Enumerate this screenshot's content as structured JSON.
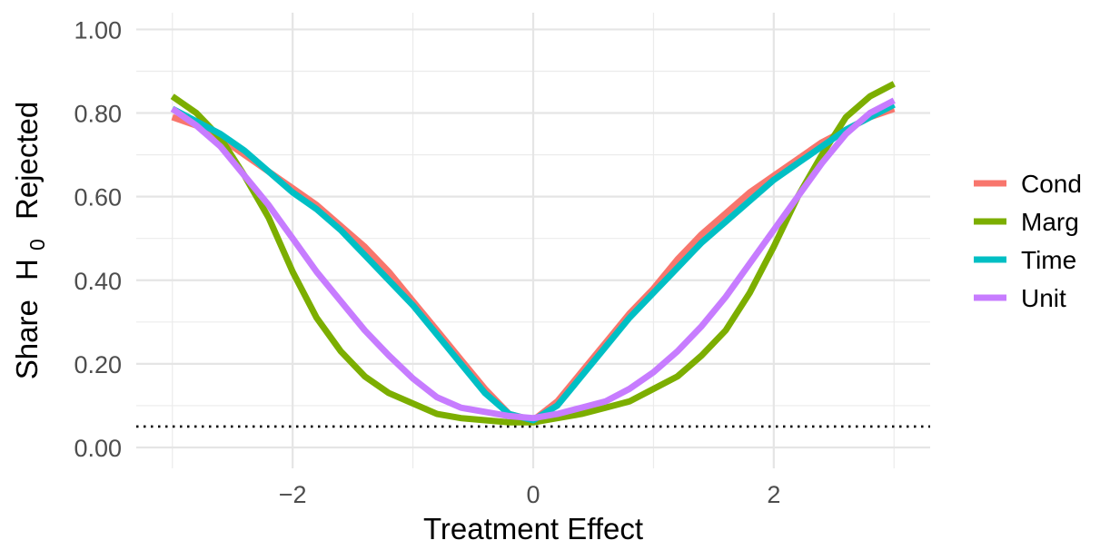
{
  "chart_data": {
    "type": "line",
    "xlabel": "Treatment Effect",
    "ylabel": {
      "prefix": "Share",
      "symbol": "H",
      "subscript": "0",
      "suffix": "Rejected"
    },
    "xlim": [
      -3.3,
      3.3
    ],
    "ylim": [
      -0.05,
      1.04
    ],
    "xticks": [
      -2,
      0,
      2
    ],
    "xtick_labels": [
      "−2",
      "0",
      "2"
    ],
    "yticks": [
      0,
      0.2,
      0.4,
      0.6,
      0.8,
      1.0
    ],
    "ytick_labels": [
      "0.00",
      "0.20",
      "0.40",
      "0.60",
      "0.80",
      "1.00"
    ],
    "x_minor_gridlines": [
      -3,
      -1,
      1,
      3
    ],
    "y_minor_gridlines": [
      0.1,
      0.3,
      0.5,
      0.7,
      0.9
    ],
    "grid": true,
    "reference_line": {
      "y": 0.05,
      "style": "dotted"
    },
    "legend_position": "right",
    "x": [
      -3.0,
      -2.8,
      -2.6,
      -2.4,
      -2.2,
      -2.0,
      -1.8,
      -1.6,
      -1.4,
      -1.2,
      -1.0,
      -0.8,
      -0.6,
      -0.4,
      -0.2,
      0.0,
      0.2,
      0.4,
      0.6,
      0.8,
      1.0,
      1.2,
      1.4,
      1.6,
      1.8,
      2.0,
      2.2,
      2.4,
      2.6,
      2.8,
      3.0
    ],
    "series": [
      {
        "name": "Cond",
        "color": "#F8766D",
        "values": [
          0.79,
          0.77,
          0.74,
          0.7,
          0.66,
          0.62,
          0.58,
          0.53,
          0.48,
          0.42,
          0.35,
          0.28,
          0.21,
          0.14,
          0.08,
          0.065,
          0.11,
          0.18,
          0.25,
          0.32,
          0.38,
          0.45,
          0.51,
          0.56,
          0.61,
          0.65,
          0.69,
          0.73,
          0.76,
          0.79,
          0.81
        ]
      },
      {
        "name": "Marg",
        "color": "#7CAE00",
        "values": [
          0.84,
          0.8,
          0.74,
          0.65,
          0.55,
          0.42,
          0.31,
          0.23,
          0.17,
          0.13,
          0.105,
          0.08,
          0.07,
          0.065,
          0.06,
          0.06,
          0.07,
          0.08,
          0.095,
          0.11,
          0.14,
          0.17,
          0.22,
          0.28,
          0.37,
          0.48,
          0.6,
          0.7,
          0.79,
          0.84,
          0.87
        ]
      },
      {
        "name": "Time",
        "color": "#00BFC4",
        "values": [
          0.81,
          0.78,
          0.75,
          0.71,
          0.66,
          0.61,
          0.57,
          0.52,
          0.46,
          0.4,
          0.34,
          0.27,
          0.2,
          0.13,
          0.08,
          0.065,
          0.1,
          0.17,
          0.24,
          0.31,
          0.37,
          0.43,
          0.49,
          0.54,
          0.59,
          0.64,
          0.68,
          0.72,
          0.76,
          0.79,
          0.82
        ]
      },
      {
        "name": "Unit",
        "color": "#C77CFF",
        "values": [
          0.81,
          0.77,
          0.72,
          0.65,
          0.58,
          0.5,
          0.42,
          0.35,
          0.28,
          0.22,
          0.165,
          0.12,
          0.095,
          0.085,
          0.075,
          0.07,
          0.08,
          0.095,
          0.11,
          0.14,
          0.18,
          0.23,
          0.29,
          0.36,
          0.44,
          0.52,
          0.6,
          0.68,
          0.75,
          0.8,
          0.83
        ]
      }
    ]
  }
}
